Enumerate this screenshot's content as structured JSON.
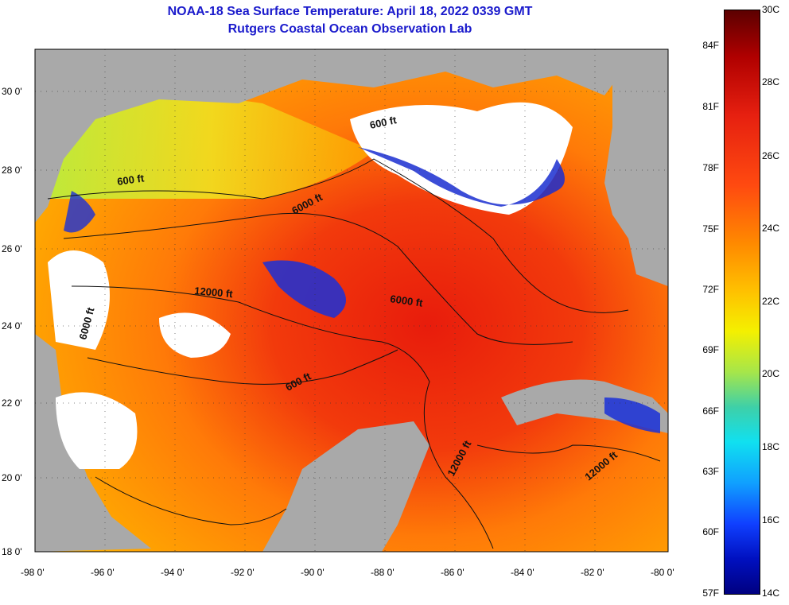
{
  "title": {
    "line1": "NOAA-18 Sea Surface Temperature:  April 18, 2022 0339 GMT",
    "line2": "Rutgers Coastal Ocean Observation Lab"
  },
  "axes": {
    "lat_labels": [
      "30 0'",
      "28 0'",
      "26 0'",
      "24 0'",
      "22 0'",
      "20 0'",
      "18 0'"
    ],
    "lon_labels": [
      "-98 0'",
      "-96 0'",
      "-94 0'",
      "-92 0'",
      "-90 0'",
      "-88 0'",
      "-86 0'",
      "-84 0'",
      "-82 0'",
      "-80 0'"
    ]
  },
  "contours": [
    "600 ft",
    "6000 ft",
    "12000 ft",
    "6000 ft",
    "6000 ft",
    "600 ft",
    "600 ft",
    "12000 ft",
    "12000 ft"
  ],
  "colorbar": {
    "fahrenheit": [
      "84F",
      "81F",
      "78F",
      "75F",
      "72F",
      "69F",
      "66F",
      "63F",
      "60F",
      "57F"
    ],
    "celsius": [
      "30C",
      "28C",
      "26C",
      "24C",
      "22C",
      "20C",
      "18C",
      "16C",
      "14C"
    ]
  },
  "colors": {
    "title": "#1a1acc",
    "land": "#a9a9a9",
    "cloud": "#ffffff"
  }
}
